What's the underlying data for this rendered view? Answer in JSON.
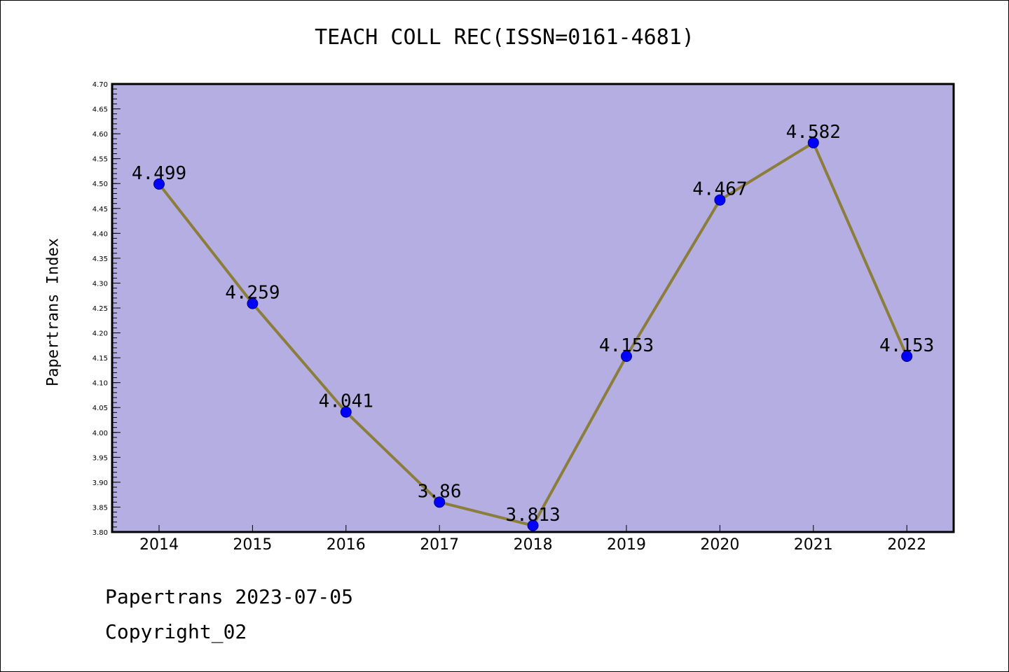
{
  "chart_data": {
    "type": "line",
    "title": "TEACH COLL REC(ISSN=0161-4681)",
    "ylabel": "Papertrans Index",
    "xlabel": "",
    "categories": [
      "2014",
      "2015",
      "2016",
      "2017",
      "2018",
      "2019",
      "2020",
      "2021",
      "2022"
    ],
    "values": [
      4.499,
      4.259,
      4.041,
      3.86,
      3.813,
      4.153,
      4.467,
      4.582,
      4.153
    ],
    "value_labels": [
      "4.499",
      "4.259",
      "4.041",
      "3.86",
      "3.813",
      "4.153",
      "4.467",
      "4.582",
      "4.153"
    ],
    "ylim": [
      3.8,
      4.7
    ],
    "yticks": [
      "3.80",
      "3.85",
      "3.90",
      "3.95",
      "4.00",
      "4.05",
      "4.10",
      "4.15",
      "4.20",
      "4.25",
      "4.30",
      "4.35",
      "4.40",
      "4.45",
      "4.50",
      "4.55",
      "4.60",
      "4.65",
      "4.70"
    ],
    "grid": false,
    "colors": {
      "plot_background": "#b4aee2",
      "line": "#8b7d3a",
      "marker": "#0000ff",
      "marker_edge": "#00008b"
    }
  },
  "footer": {
    "line1": "Papertrans 2023-07-05",
    "line2": "Copyright_02"
  }
}
